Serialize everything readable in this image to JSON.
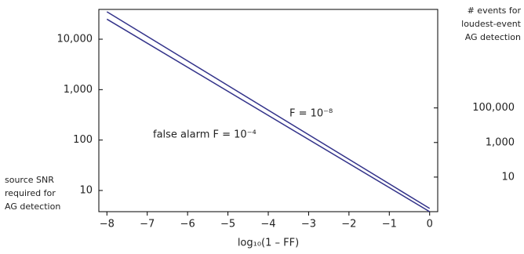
{
  "chart_data": {
    "type": "line",
    "x_label": "log₁₀(1 – FF)",
    "y_label": [
      "source SNR",
      "required for",
      "AG detection"
    ],
    "y2_label": [
      "# events for",
      "loudest-event",
      "AG detection"
    ],
    "annotations": [
      "F = 10⁻⁸",
      "false alarm F = 10⁻⁴"
    ],
    "log_y": true,
    "log_y2": true,
    "xlim": [
      -8.2,
      0.2
    ],
    "xticks": [
      -8,
      -7,
      -6,
      -5,
      -4,
      -3,
      -2,
      -1,
      0
    ],
    "ylim": [
      3.8,
      39000
    ],
    "yticks": [
      10,
      100,
      {
        "value": 1000,
        "label": "1,000"
      },
      {
        "value": 10000,
        "label": "10,000"
      }
    ],
    "y2lim": [
      0.1,
      50000000000
    ],
    "y2ticks": [
      10,
      {
        "value": 1000,
        "label": "1,000"
      },
      {
        "value": 100000,
        "label": "100,000"
      }
    ],
    "series": [
      {
        "color": "#33338a",
        "x": [
          -8,
          0
        ],
        "values": [
          35000,
          4.4
        ]
      },
      {
        "color": "#33338a",
        "x": [
          -8,
          0
        ],
        "values": [
          25000,
          3.8
        ]
      }
    ]
  }
}
